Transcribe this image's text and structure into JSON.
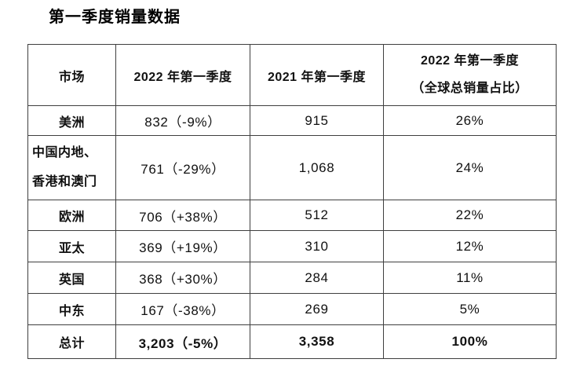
{
  "title": "第一季度销量数据",
  "table": {
    "columns": {
      "market": "市场",
      "q1_2022": "2022 年第一季度",
      "q1_2021": "2021 年第一季度",
      "share_line1": "2022 年第一季度",
      "share_line2": "（全球总销量占比）"
    },
    "rows": [
      {
        "market": "美洲",
        "y2022": "832（-9%）",
        "y2021": "915",
        "share": "26%"
      },
      {
        "market": "中国内地、\n香港和澳门",
        "y2022": "761（-29%）",
        "y2021": "1,068",
        "share": "24%"
      },
      {
        "market": "欧洲",
        "y2022": "706（+38%）",
        "y2021": "512",
        "share": "22%"
      },
      {
        "market": "亚太",
        "y2022": "369（+19%）",
        "y2021": "310",
        "share": "12%"
      },
      {
        "market": "英国",
        "y2022": "368（+30%）",
        "y2021": "284",
        "share": "11%"
      },
      {
        "market": "中东",
        "y2022": "167（-38%）",
        "y2021": "269",
        "share": "5%"
      },
      {
        "market": "总计",
        "y2022": "3,203（-5%）",
        "y2021": "3,358",
        "share": "100%"
      }
    ]
  },
  "colors": {
    "text": "#111111",
    "border": "#3f3f3f",
    "background": "#ffffff"
  }
}
